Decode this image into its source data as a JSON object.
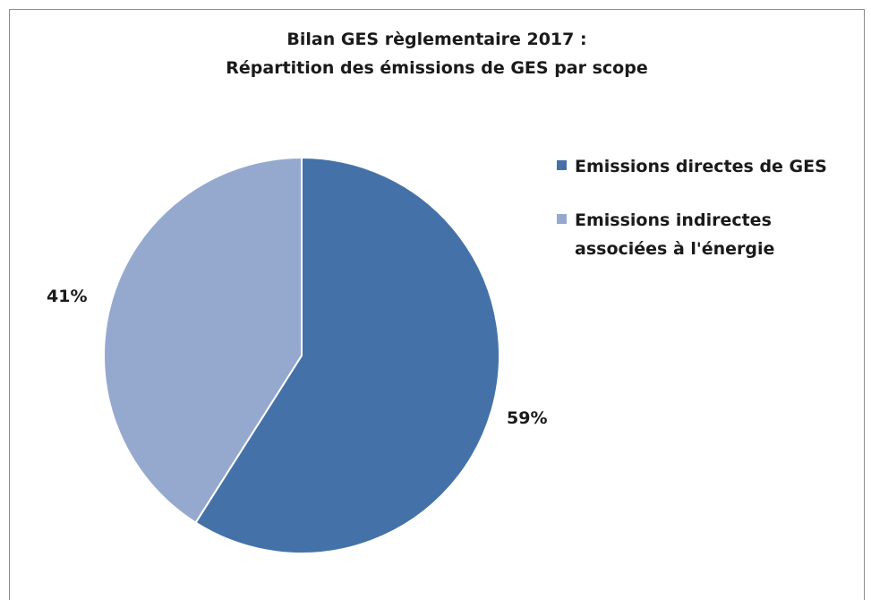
{
  "chart_data": {
    "type": "pie",
    "title_line1": "Bilan GES règlementaire 2017 :",
    "title_line2": "Répartition des émissions de GES par scope",
    "legend_position": "right",
    "series": [
      {
        "name": "Emissions directes de GES",
        "value": 59,
        "label": "59%",
        "color": "#4472A8"
      },
      {
        "name": "Emissions indirectes associées à l'énergie",
        "value": 41,
        "label": "41%",
        "color": "#95A9CF"
      }
    ]
  }
}
